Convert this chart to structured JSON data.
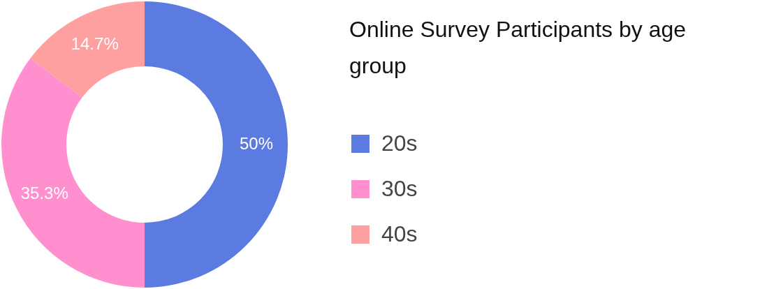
{
  "chart_data": {
    "type": "donut",
    "title": "Online Survey Participants by age group",
    "categories": [
      "20s",
      "30s",
      "40s"
    ],
    "values": [
      50,
      35.3,
      14.7
    ],
    "colors": [
      "#5b7be0",
      "#ff8fcf",
      "#ffa0a0"
    ],
    "value_labels": [
      "50%",
      "35.3%",
      "14.7%"
    ],
    "legend": "right"
  }
}
